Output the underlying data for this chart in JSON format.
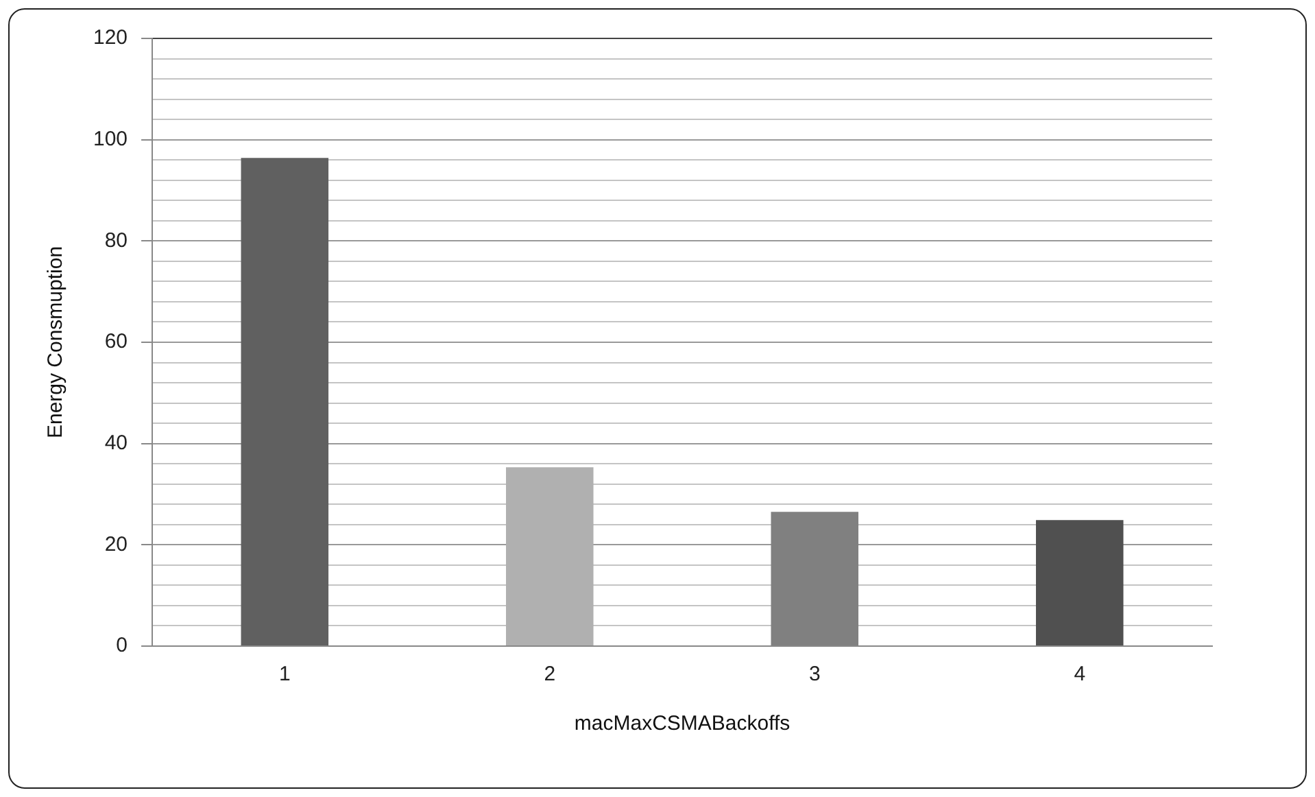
{
  "chart_data": {
    "type": "bar",
    "xlabel": "macMaxCSMABackoffs",
    "ylabel": "Energy Consmuption",
    "categories": [
      "1",
      "2",
      "3",
      "4"
    ],
    "values": [
      96.4,
      35.3,
      26.5,
      24.9
    ],
    "colors": [
      "#606060",
      "#b0b0b0",
      "#808080",
      "#505050"
    ],
    "ylim": [
      0,
      120
    ],
    "yticks": [
      0,
      {
        "value": 4,
        "label": null
      },
      {
        "value": 8,
        "label": null
      },
      {
        "value": 12,
        "label": null
      },
      {
        "value": 16,
        "label": null
      },
      20,
      {
        "value": 24,
        "label": null
      },
      {
        "value": 28,
        "label": null
      },
      {
        "value": 32,
        "label": null
      },
      {
        "value": 36,
        "label": null
      },
      40,
      {
        "value": 44,
        "label": null
      },
      {
        "value": 48,
        "label": null
      },
      {
        "value": 52,
        "label": null
      },
      {
        "value": 56,
        "label": null
      },
      60,
      {
        "value": 64,
        "label": null
      },
      {
        "value": 68,
        "label": null
      },
      {
        "value": 72,
        "label": null
      },
      {
        "value": 76,
        "label": null
      },
      80,
      {
        "value": 84,
        "label": null
      },
      {
        "value": 88,
        "label": null
      },
      {
        "value": 92,
        "label": null
      },
      {
        "value": 96,
        "label": null
      },
      100,
      {
        "value": 104,
        "label": null
      },
      {
        "value": 108,
        "label": null
      },
      {
        "value": 112,
        "label": null
      },
      {
        "value": 116,
        "label": null
      },
      120
    ],
    "grid": "y",
    "legend": false
  }
}
